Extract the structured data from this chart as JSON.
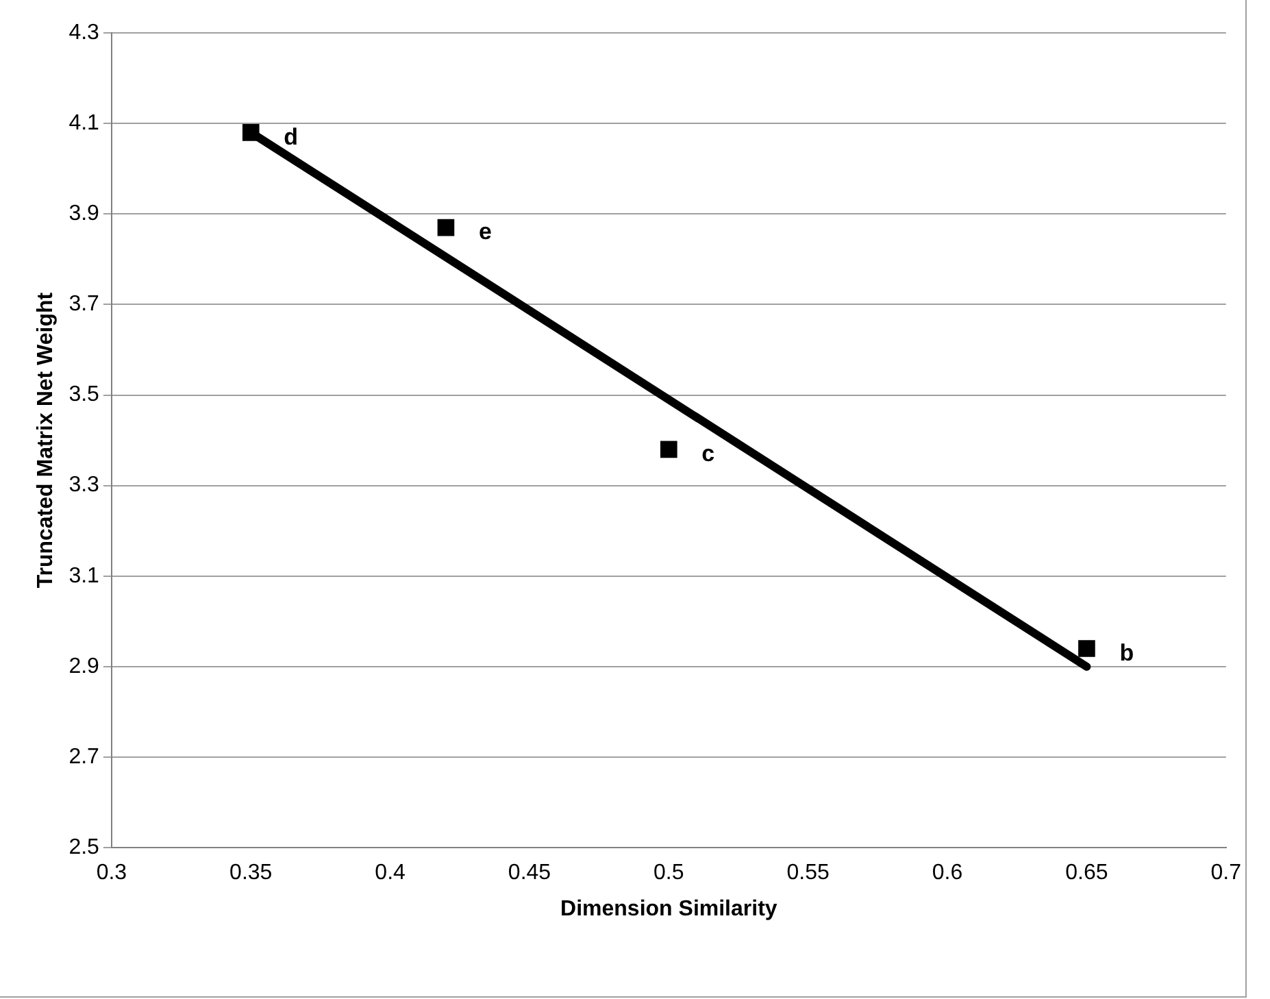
{
  "chart_data": {
    "type": "scatter",
    "xlabel": "Dimension Similarity",
    "ylabel": "Truncated Matrix Net Weight",
    "series": [
      {
        "color": "#000000",
        "x": [
          0.35,
          0.42,
          0.5,
          0.65
        ],
        "values": [
          4.08,
          3.87,
          3.38,
          2.94
        ],
        "marker": "square"
      },
      {
        "type": "line",
        "color": "#000000",
        "x": [
          0.35,
          0.65
        ],
        "values": [
          4.08,
          2.9
        ],
        "marker": "none",
        "line_style": "solid"
      }
    ],
    "annotations": [
      {
        "text": "d",
        "x": 0.35,
        "y": 4.08
      },
      {
        "text": "e",
        "x": 0.42,
        "y": 3.87
      },
      {
        "text": "c",
        "x": 0.5,
        "y": 3.38
      },
      {
        "text": "b",
        "x": 0.65,
        "y": 2.94
      }
    ],
    "xlim": [
      0.3,
      0.7
    ],
    "xticks": [
      0.3,
      0.35,
      0.4,
      0.45,
      0.5,
      0.55,
      0.6,
      0.65,
      0.7
    ],
    "ylim": [
      2.5,
      4.3
    ],
    "yticks": [
      2.5,
      2.7,
      2.9,
      3.1,
      3.3,
      3.5,
      3.7,
      3.9,
      4.1,
      4.3
    ],
    "grid": "y",
    "legend": false
  }
}
